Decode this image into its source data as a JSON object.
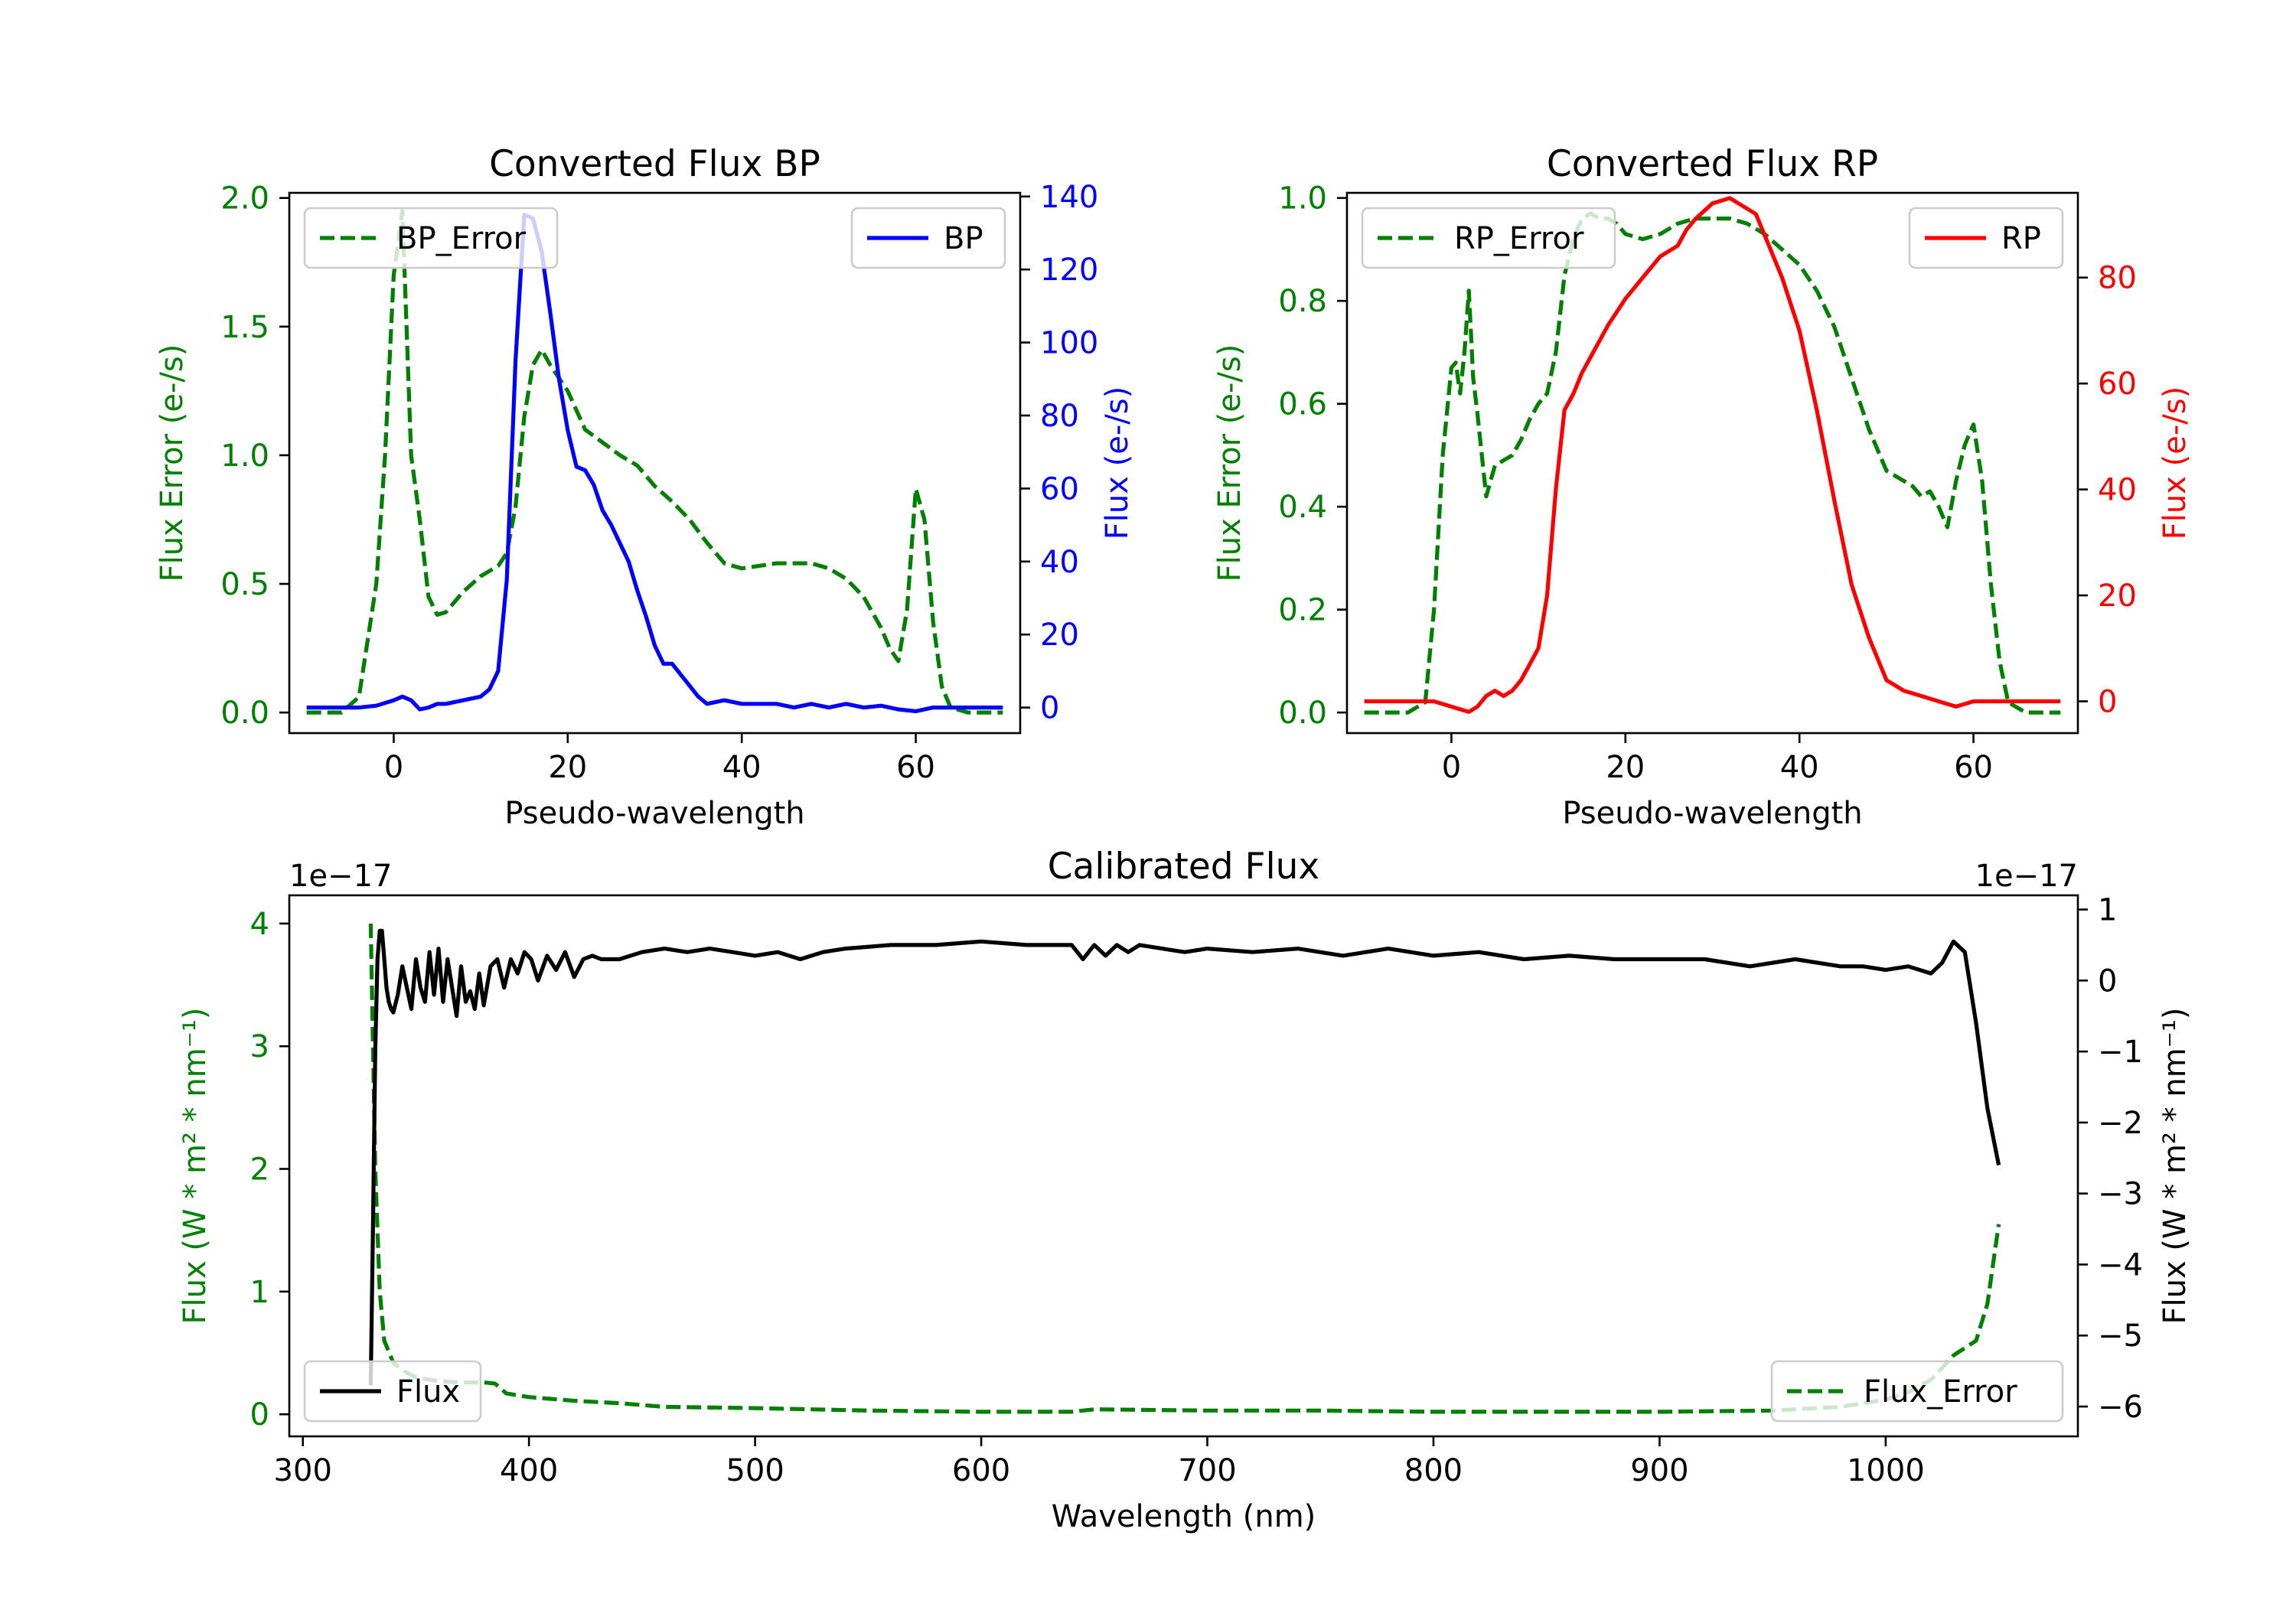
{
  "figure": {
    "background": "#ffffff"
  },
  "chart_data": [
    {
      "id": "bp",
      "type": "line",
      "title": "Converted Flux BP",
      "xlabel": "Pseudo-wavelength",
      "ylabel_left": "Flux Error (e-/s)",
      "ylabel_right": "Flux (e-/s)",
      "xlim": [
        -12,
        72
      ],
      "ylim_left": [
        -0.08,
        2.02
      ],
      "ylim_right": [
        -7,
        141
      ],
      "xticks": [
        0,
        20,
        40,
        60
      ],
      "yticks_left": [
        0.0,
        0.5,
        1.0,
        1.5,
        2.0
      ],
      "yticks_left_labels": [
        "0.0",
        "0.5",
        "1.0",
        "1.5",
        "2.0"
      ],
      "yticks_right": [
        0,
        20,
        40,
        60,
        80,
        100,
        120,
        140
      ],
      "left_color": "#008000",
      "right_color": "#0000ff",
      "series": [
        {
          "name": "BP_Error",
          "axis": "left",
          "style": "dashed",
          "color": "#008000",
          "x": [
            -10,
            -6,
            -4,
            -2,
            -1,
            0,
            1,
            2,
            3,
            4,
            5,
            6,
            7,
            8,
            10,
            12,
            13,
            14,
            15,
            16,
            17,
            18,
            19,
            20,
            22,
            24,
            26,
            28,
            30,
            32,
            34,
            36,
            38,
            40,
            42,
            44,
            46,
            48,
            50,
            52,
            54,
            56,
            57,
            58,
            59,
            60,
            61,
            62,
            63,
            64,
            66,
            70
          ],
          "values": [
            0.0,
            0.0,
            0.06,
            0.5,
            1.0,
            1.7,
            1.95,
            1.0,
            0.75,
            0.45,
            0.38,
            0.39,
            0.43,
            0.47,
            0.53,
            0.57,
            0.62,
            0.8,
            1.15,
            1.35,
            1.41,
            1.35,
            1.3,
            1.25,
            1.1,
            1.05,
            1.0,
            0.96,
            0.88,
            0.82,
            0.75,
            0.66,
            0.58,
            0.56,
            0.57,
            0.58,
            0.58,
            0.58,
            0.56,
            0.52,
            0.45,
            0.33,
            0.25,
            0.2,
            0.4,
            0.87,
            0.75,
            0.35,
            0.1,
            0.02,
            0.0,
            0.0
          ]
        },
        {
          "name": "BP",
          "axis": "right",
          "style": "solid",
          "color": "#0000ff",
          "x": [
            -10,
            -6,
            -4,
            -2,
            0,
            1,
            2,
            3,
            4,
            5,
            6,
            8,
            10,
            11,
            12,
            13,
            14,
            15,
            16,
            17,
            18,
            19,
            20,
            21,
            22,
            23,
            24,
            25,
            26,
            27,
            28,
            29,
            30,
            31,
            32,
            33,
            34,
            35,
            36,
            38,
            40,
            42,
            44,
            46,
            48,
            50,
            52,
            54,
            56,
            58,
            60,
            62,
            64,
            66,
            70
          ],
          "values": [
            0,
            0,
            0,
            0.5,
            2,
            3,
            2,
            -0.5,
            0,
            1,
            1,
            2,
            3,
            5,
            10,
            35,
            95,
            135,
            134,
            125,
            108,
            90,
            76,
            66,
            65,
            61,
            54,
            50,
            45,
            40,
            32,
            25,
            17,
            12,
            12,
            9,
            6,
            3,
            1,
            2,
            1,
            1,
            1,
            0,
            1,
            0,
            1,
            0,
            0.5,
            -0.5,
            -1,
            0,
            0,
            0,
            0
          ]
        }
      ],
      "legend": [
        {
          "label": "BP_Error",
          "position": "upper-left"
        },
        {
          "label": "BP",
          "position": "upper-right"
        }
      ]
    },
    {
      "id": "rp",
      "type": "line",
      "title": "Converted Flux RP",
      "xlabel": "Pseudo-wavelength",
      "ylabel_left": "Flux Error (e-/s)",
      "ylabel_right": "Flux (e-/s)",
      "xlim": [
        -12,
        72
      ],
      "ylim_left": [
        -0.04,
        1.01
      ],
      "ylim_right": [
        -6,
        96
      ],
      "xticks": [
        0,
        20,
        40,
        60
      ],
      "yticks_left": [
        0.0,
        0.2,
        0.4,
        0.6,
        0.8,
        1.0
      ],
      "yticks_left_labels": [
        "0.0",
        "0.2",
        "0.4",
        "0.6",
        "0.8",
        "1.0"
      ],
      "yticks_right": [
        0,
        20,
        40,
        60,
        80
      ],
      "left_color": "#008000",
      "right_color": "#ff0000",
      "series": [
        {
          "name": "RP_Error",
          "axis": "left",
          "style": "dashed",
          "color": "#008000",
          "x": [
            -10,
            -5,
            -3,
            -2,
            -1,
            0,
            0.5,
            1,
            1.5,
            2,
            2.5,
            3,
            4,
            5,
            6,
            7,
            8,
            9,
            10,
            11,
            12,
            13,
            14,
            15,
            16,
            17,
            18,
            19,
            20,
            22,
            24,
            26,
            28,
            30,
            32,
            34,
            36,
            38,
            40,
            42,
            44,
            46,
            48,
            50,
            52,
            53,
            54,
            55,
            56,
            57,
            58,
            59,
            60,
            61,
            62,
            63,
            64,
            66,
            70
          ],
          "values": [
            0.0,
            0.0,
            0.02,
            0.2,
            0.5,
            0.67,
            0.68,
            0.62,
            0.7,
            0.82,
            0.65,
            0.58,
            0.42,
            0.48,
            0.49,
            0.5,
            0.53,
            0.57,
            0.6,
            0.62,
            0.7,
            0.85,
            0.92,
            0.96,
            0.97,
            0.96,
            0.96,
            0.95,
            0.93,
            0.92,
            0.93,
            0.95,
            0.96,
            0.96,
            0.96,
            0.95,
            0.93,
            0.9,
            0.87,
            0.82,
            0.75,
            0.65,
            0.55,
            0.47,
            0.45,
            0.44,
            0.42,
            0.43,
            0.4,
            0.36,
            0.45,
            0.52,
            0.56,
            0.45,
            0.25,
            0.1,
            0.02,
            0.0,
            0.0
          ]
        },
        {
          "name": "RP",
          "axis": "right",
          "style": "solid",
          "color": "#ff0000",
          "x": [
            -10,
            -6,
            -4,
            -2,
            0,
            1,
            2,
            3,
            4,
            5,
            6,
            7,
            8,
            9,
            10,
            11,
            12,
            13,
            14,
            15,
            16,
            18,
            20,
            22,
            24,
            26,
            27,
            28,
            30,
            32,
            33,
            34,
            35,
            36,
            38,
            40,
            42,
            44,
            46,
            48,
            50,
            52,
            54,
            56,
            58,
            60,
            62,
            64,
            66,
            70
          ],
          "values": [
            0,
            0,
            0,
            0,
            -1,
            -1.5,
            -2,
            -1,
            1,
            2,
            1,
            2,
            4,
            7,
            10,
            20,
            40,
            55,
            58,
            62,
            65,
            71,
            76,
            80,
            84,
            86,
            89,
            91,
            94,
            95,
            94,
            93,
            92,
            88,
            80,
            70,
            55,
            38,
            22,
            12,
            4,
            2,
            1,
            0,
            -1,
            0,
            0,
            0,
            0,
            0
          ]
        }
      ],
      "legend": [
        {
          "label": "RP_Error",
          "position": "upper-left"
        },
        {
          "label": "RP",
          "position": "upper-right"
        }
      ]
    },
    {
      "id": "calibrated",
      "type": "line",
      "title": "Calibrated Flux",
      "xlabel": "Wavelength (nm)",
      "ylabel_left": "Flux (W * m² * nm⁻¹)",
      "ylabel_right": "Flux (W * m² * nm⁻¹)",
      "offset_left": "1e−17",
      "offset_right": "1e−17",
      "xlim": [
        294,
        1085
      ],
      "ylim_left": [
        -0.18,
        4.23
      ],
      "ylim_right": [
        -6.42,
        1.2
      ],
      "xticks": [
        300,
        400,
        500,
        600,
        700,
        800,
        900,
        1000
      ],
      "yticks_left": [
        0,
        1,
        2,
        3,
        4
      ],
      "yticks_right": [
        1,
        0,
        -1,
        -2,
        -3,
        -4,
        -5,
        -6
      ],
      "left_color": "#008000",
      "right_color": "#000000",
      "series": [
        {
          "name": "Flux_Error",
          "axis": "left",
          "style": "dashed",
          "color": "#008000",
          "x": [
            330,
            332,
            334,
            336,
            340,
            345,
            350,
            360,
            370,
            380,
            385,
            390,
            400,
            420,
            440,
            460,
            500,
            550,
            600,
            640,
            650,
            700,
            750,
            800,
            850,
            900,
            950,
            980,
            1000,
            1010,
            1020,
            1030,
            1040,
            1045,
            1050
          ],
          "values": [
            4.0,
            2.0,
            1.0,
            0.6,
            0.42,
            0.35,
            0.3,
            0.27,
            0.26,
            0.26,
            0.25,
            0.17,
            0.14,
            0.11,
            0.09,
            0.06,
            0.05,
            0.03,
            0.02,
            0.02,
            0.04,
            0.03,
            0.03,
            0.02,
            0.02,
            0.02,
            0.03,
            0.06,
            0.12,
            0.18,
            0.28,
            0.48,
            0.6,
            0.9,
            1.55
          ]
        },
        {
          "name": "Flux",
          "axis": "right",
          "style": "solid",
          "color": "#000000",
          "x": [
            330,
            331,
            332,
            333,
            334,
            335,
            336,
            337,
            338,
            339,
            340,
            342,
            344,
            346,
            348,
            350,
            352,
            354,
            356,
            358,
            360,
            362,
            364,
            366,
            368,
            370,
            372,
            374,
            376,
            378,
            380,
            383,
            386,
            389,
            392,
            395,
            398,
            401,
            404,
            408,
            412,
            416,
            420,
            424,
            428,
            432,
            440,
            450,
            460,
            470,
            480,
            490,
            500,
            510,
            520,
            530,
            540,
            560,
            580,
            600,
            620,
            640,
            645,
            650,
            655,
            660,
            665,
            670,
            680,
            690,
            700,
            720,
            740,
            760,
            780,
            800,
            820,
            840,
            860,
            880,
            900,
            920,
            940,
            960,
            980,
            990,
            1000,
            1010,
            1020,
            1025,
            1030,
            1035,
            1040,
            1045,
            1050
          ],
          "values": [
            -5.7,
            -3.5,
            -1.0,
            0.3,
            0.7,
            0.7,
            0.3,
            -0.1,
            -0.3,
            -0.4,
            -0.45,
            -0.2,
            0.2,
            -0.1,
            -0.4,
            0.3,
            -0.1,
            -0.3,
            0.4,
            -0.2,
            0.45,
            -0.3,
            0.3,
            -0.1,
            -0.5,
            0.2,
            -0.3,
            -0.15,
            -0.4,
            0.1,
            -0.35,
            0.2,
            0.3,
            -0.1,
            0.3,
            0.1,
            0.4,
            0.3,
            0.0,
            0.35,
            0.15,
            0.4,
            0.05,
            0.3,
            0.35,
            0.3,
            0.3,
            0.4,
            0.45,
            0.4,
            0.45,
            0.4,
            0.35,
            0.4,
            0.3,
            0.4,
            0.45,
            0.5,
            0.5,
            0.55,
            0.5,
            0.5,
            0.3,
            0.5,
            0.35,
            0.5,
            0.4,
            0.5,
            0.45,
            0.4,
            0.45,
            0.4,
            0.45,
            0.35,
            0.45,
            0.35,
            0.4,
            0.3,
            0.35,
            0.3,
            0.3,
            0.3,
            0.2,
            0.3,
            0.2,
            0.2,
            0.15,
            0.2,
            0.1,
            0.25,
            0.55,
            0.4,
            -0.6,
            -1.8,
            -2.6
          ]
        }
      ],
      "legend": [
        {
          "label": "Flux",
          "position": "lower-left"
        },
        {
          "label": "Flux_Error",
          "position": "lower-right"
        }
      ]
    }
  ]
}
